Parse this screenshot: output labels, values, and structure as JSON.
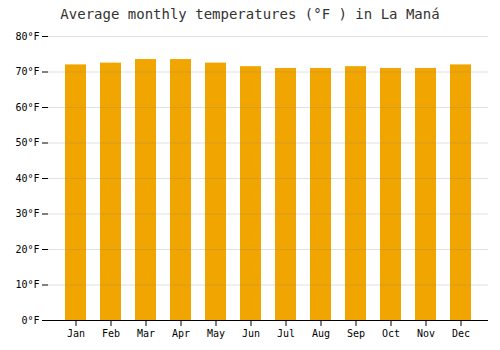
{
  "chart_data": {
    "type": "bar",
    "title": "Average monthly temperatures (°F ) in La Maná",
    "categories": [
      "Jan",
      "Feb",
      "Mar",
      "Apr",
      "May",
      "Jun",
      "Jul",
      "Aug",
      "Sep",
      "Oct",
      "Nov",
      "Dec"
    ],
    "values": [
      72.0,
      72.5,
      73.5,
      73.5,
      72.5,
      71.5,
      71.0,
      71.0,
      71.5,
      71.0,
      71.0,
      72.0
    ],
    "color": "#F0A500",
    "ylim": [
      0,
      80
    ],
    "yticks": [
      {
        "value": 0,
        "label": "0°F"
      },
      {
        "value": 10,
        "label": "10°F"
      },
      {
        "value": 20,
        "label": "20°F"
      },
      {
        "value": 30,
        "label": "30°F"
      },
      {
        "value": 40,
        "label": "40°F"
      },
      {
        "value": 50,
        "label": "50°F"
      },
      {
        "value": 60,
        "label": "60°F"
      },
      {
        "value": 70,
        "label": "70°F"
      },
      {
        "value": 80,
        "label": "80°F"
      }
    ],
    "grid": true
  }
}
